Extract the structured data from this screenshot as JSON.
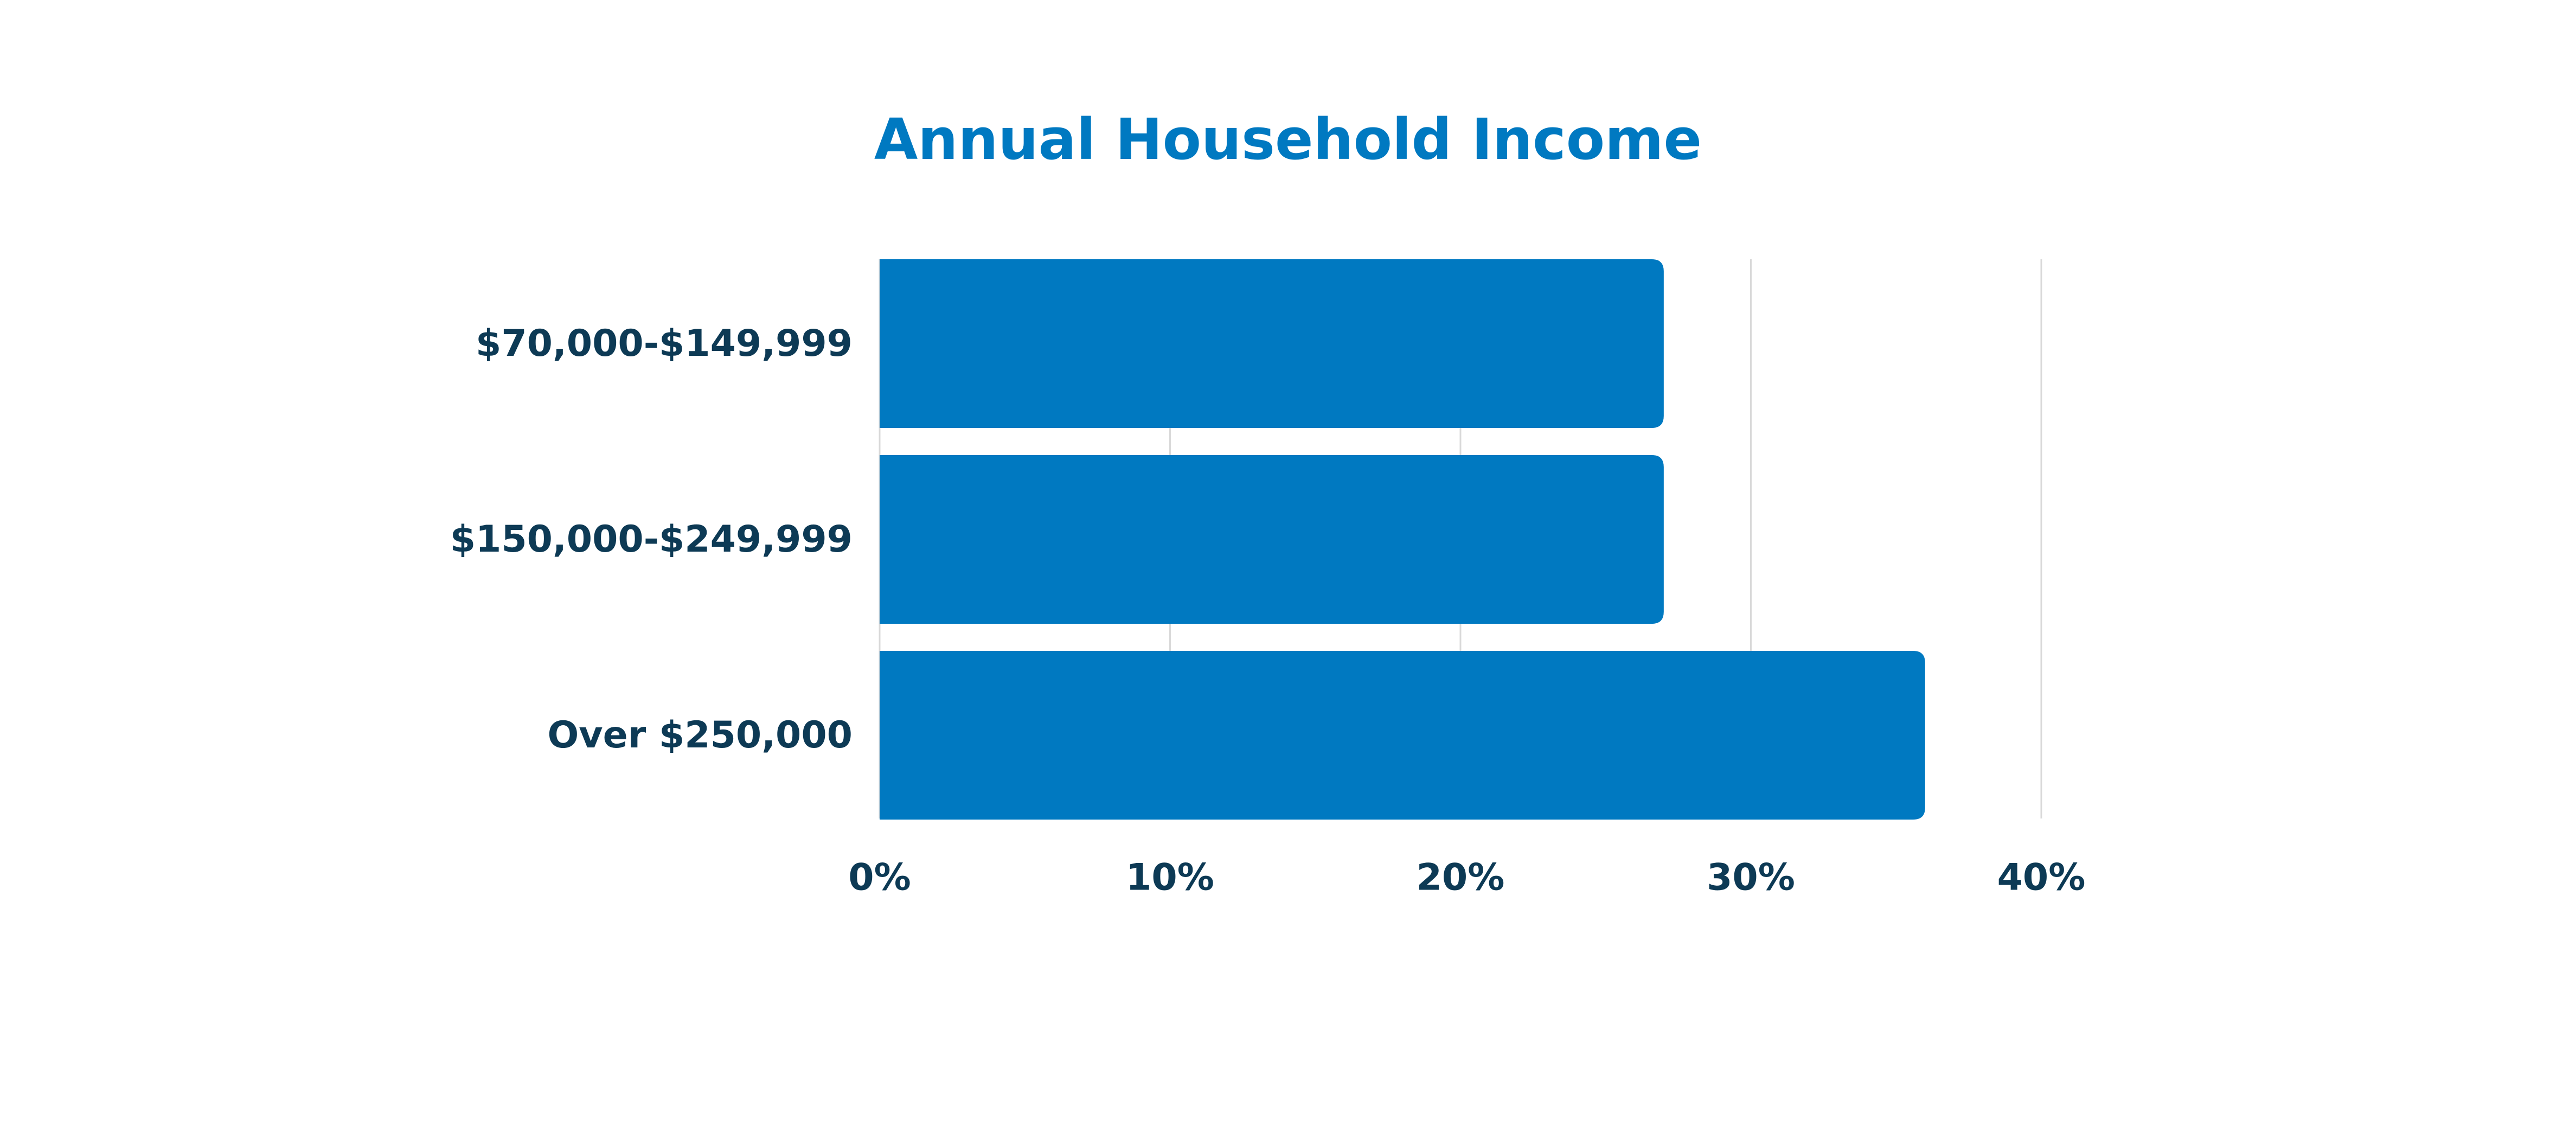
{
  "colors": {
    "title": "#0079c1",
    "bar": "#0079c1",
    "label": "#0d3a55",
    "grid": "#d9d9d9"
  },
  "chart_data": {
    "type": "bar",
    "orientation": "horizontal",
    "title": "Annual Household Income",
    "xlabel": "",
    "ylabel": "",
    "categories": [
      "$70,000-$149,999",
      "$150,000-$249,999",
      "Over $250,000"
    ],
    "values": [
      27,
      27,
      36
    ],
    "xlim": [
      0,
      40
    ],
    "xticks": [
      0,
      10,
      20,
      30,
      40
    ],
    "xtick_labels": [
      "0%",
      "10%",
      "20%",
      "30%",
      "40%"
    ],
    "grid": "vertical",
    "legend": "none"
  }
}
